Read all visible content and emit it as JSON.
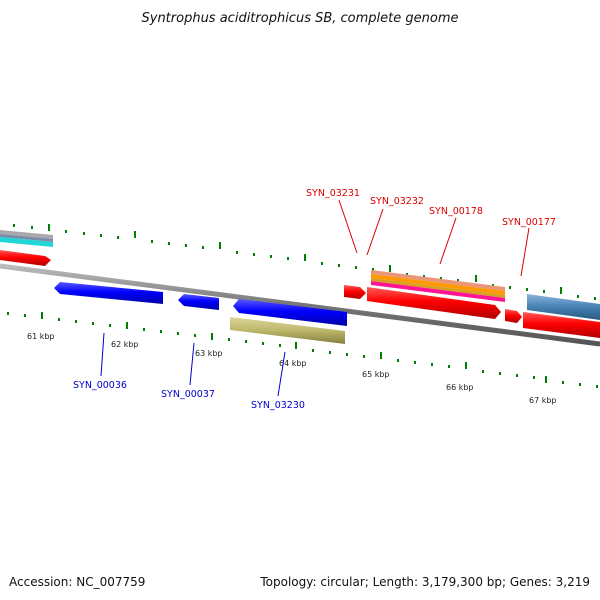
{
  "title": "Syntrophus aciditrophicus SB, complete genome",
  "footer": {
    "accession": "Accession: NC_007759",
    "summary": "Topology: circular; Length: 3,179,300 bp; Genes: 3,219"
  },
  "ticks": [
    "61 kbp",
    "62 kbp",
    "63 kbp",
    "64 kbp",
    "65 kbp",
    "66 kbp",
    "67 kbp"
  ],
  "genes_forward": [
    "SYN_03231",
    "SYN_03232",
    "SYN_00178",
    "SYN_00177"
  ],
  "genes_reverse": [
    "SYN_00036",
    "SYN_00037",
    "SYN_03230"
  ],
  "colors": {
    "forward": "#ff0000",
    "reverse": "#0000ff",
    "backbone": "#888888",
    "ticks": "#008000",
    "khaki_feature": "#bdb76b",
    "steelblue_feature": "#4682b4"
  }
}
